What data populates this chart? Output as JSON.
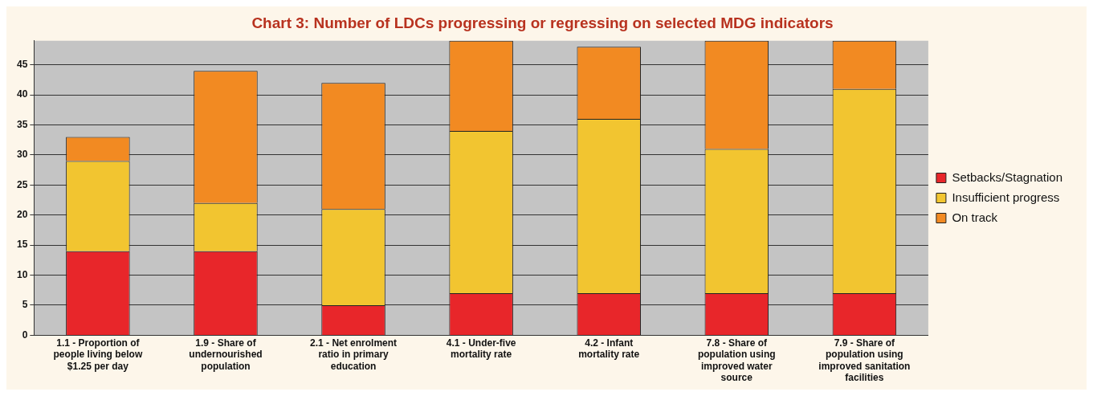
{
  "chart_data": {
    "type": "bar",
    "title": "Chart 3: Number of LDCs progressing or regressing on selected MDG indicators",
    "categories": [
      "1.1 - Proportion of people living below $1.25 per day",
      "1.9 - Share of undernourished population",
      "2.1 - Net enrolment ratio in primary education",
      "4.1 - Under-five mortality rate",
      "4.2 - Infant mortality rate",
      "7.8 - Share of population using improved water source",
      "7.9 - Share of population using improved sanitation facilities"
    ],
    "stacked": true,
    "series": [
      {
        "name": "Setbacks/Stagnation",
        "color": "#e8262a",
        "values": [
          14,
          14,
          5,
          7,
          7,
          7,
          7
        ]
      },
      {
        "name": "Insufficient progress",
        "color": "#f2c530",
        "values": [
          15,
          8,
          16,
          27,
          29,
          24,
          34
        ]
      },
      {
        "name": "On track",
        "color": "#f28a22",
        "values": [
          4,
          22,
          21,
          15,
          12,
          18,
          8
        ]
      }
    ],
    "ylim": [
      0,
      49
    ],
    "yticks": [
      0,
      5,
      10,
      15,
      20,
      25,
      30,
      35,
      40,
      45
    ],
    "grid": "y",
    "legend": "right"
  }
}
